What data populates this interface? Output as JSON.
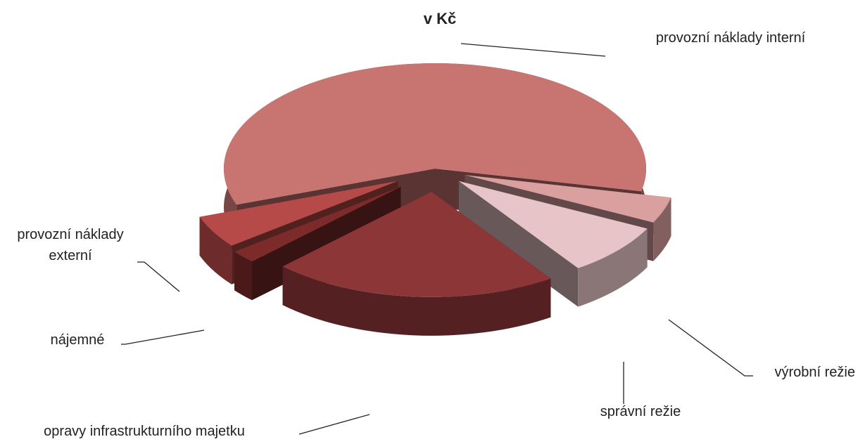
{
  "chart_data": {
    "type": "pie3d",
    "title": "v Kč",
    "categories": [
      "provozní náklady interní",
      "výrobní režie",
      "správní režie",
      "opravy infrastrukturního majetku",
      "nájemné",
      "provozní náklady externí"
    ],
    "values": [
      59,
      4,
      8,
      22,
      2,
      5
    ],
    "colors": [
      "#c87471",
      "#d9a09f",
      "#e6c4c7",
      "#8c3637",
      "#7d2a2b",
      "#b54a48"
    ]
  }
}
